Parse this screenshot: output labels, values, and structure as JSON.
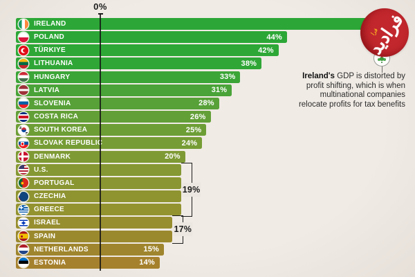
{
  "chart_data": {
    "type": "bar",
    "orientation": "horizontal",
    "axis": {
      "zero_label": "0%"
    },
    "categories": [
      "IRELAND",
      "POLAND",
      "TÜRKIYE",
      "LITHUANIA",
      "HUNGARY",
      "LATVIA",
      "SLOVENIA",
      "COSTA RICA",
      "SOUTH KOREA",
      "SLOVAK REPUBLIC",
      "DENMARK",
      "U.S.",
      "PORTUGAL",
      "CZECHIA",
      "GREECE",
      "ISRAEL",
      "SPAIN",
      "NETHERLANDS",
      "ESTONIA"
    ],
    "values": [
      null,
      44,
      42,
      38,
      33,
      31,
      28,
      26,
      25,
      24,
      20,
      19,
      19,
      19,
      19,
      17,
      17,
      15,
      14
    ],
    "value_labels": [
      "",
      "44%",
      "42%",
      "38%",
      "33%",
      "31%",
      "28%",
      "26%",
      "25%",
      "24%",
      "20%",
      "",
      "",
      "",
      "",
      "",
      "",
      "15%",
      "14%"
    ],
    "flags": [
      "ireland",
      "poland",
      "turkiye",
      "lithuania",
      "hungary",
      "latvia",
      "slovenia",
      "costarica",
      "southkorea",
      "slovakia",
      "denmark",
      "us",
      "portugal",
      "czechia",
      "greece",
      "israel",
      "spain",
      "netherlands",
      "estonia"
    ],
    "bar_colors": [
      "#2ca737",
      "#2ca737",
      "#2ea737",
      "#30a637",
      "#3ba538",
      "#49a338",
      "#57a138",
      "#639f37",
      "#6d9e36",
      "#769c35",
      "#7e9a34",
      "#859833",
      "#8a9632",
      "#8f9431",
      "#939330",
      "#978e2f",
      "#9b892e",
      "#9f852d",
      "#a6812d"
    ],
    "groups": [
      {
        "label": "19%",
        "value": 19,
        "start_index": 11,
        "end_index": 14
      },
      {
        "label": "17%",
        "value": 17,
        "start_index": 15,
        "end_index": 16
      }
    ],
    "legend": "none",
    "grid": "off"
  },
  "annotation": {
    "bold_lead": "Ireland's",
    "line1_rest": " GDP is distorted by",
    "lines": [
      "profit shifting, which is when",
      "multinational companies",
      "relocate profits for tax benefits"
    ]
  },
  "logo": {
    "text": "فرادید",
    "accent_text": "فرا",
    "bg_color": "#c1272d",
    "text_color": "#ffffff"
  },
  "colors": {
    "background": "#ece7e1",
    "axis_line": "#1c1c1c",
    "bracket": "#1c1c1c",
    "bar_text": "#ffffff",
    "annotation_text": "#2b2b2b"
  }
}
